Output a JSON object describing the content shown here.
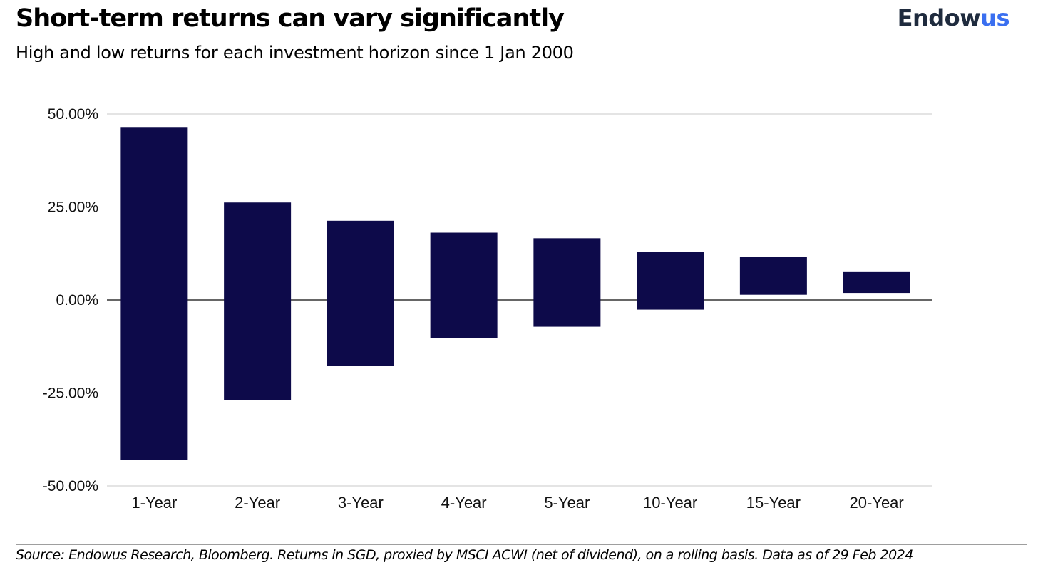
{
  "header": {
    "title": "Short-term returns can vary significantly",
    "subtitle": "High and low returns for each investment horizon since 1 Jan 2000"
  },
  "logo": {
    "main": "Endow",
    "accent": "us",
    "colors": {
      "main": "#1f2b3e",
      "accent": "#3a6ff0"
    }
  },
  "footer": {
    "source": "Source: Endowus Research, Bloomberg. Returns in SGD, proxied by MSCI ACWI (net of dividend), on a rolling basis. Data as of 29 Feb 2024"
  },
  "chart_data": {
    "type": "bar",
    "title": "Short-term returns can vary significantly",
    "subtitle": "High and low returns for each investment horizon since 1 Jan 2000",
    "categories": [
      "1-Year",
      "2-Year",
      "3-Year",
      "4-Year",
      "5-Year",
      "10-Year",
      "15-Year",
      "20-Year"
    ],
    "series": [
      {
        "name": "",
        "high": [
          46.5,
          26.2,
          21.3,
          18.1,
          16.6,
          13.0,
          11.5,
          7.5
        ],
        "low": [
          -43.0,
          -27.0,
          -17.8,
          -10.3,
          -7.2,
          -2.6,
          1.4,
          1.9
        ]
      }
    ],
    "yticks": [
      "50.00%",
      "25.00%",
      "0.00%",
      "-25.00%",
      "-50.00%"
    ],
    "ylim": [
      -50,
      50
    ],
    "grid": true,
    "bar_color": "#0d0a4a",
    "grid_color": "#c8c8c8",
    "zero_line_color": "#333333"
  }
}
